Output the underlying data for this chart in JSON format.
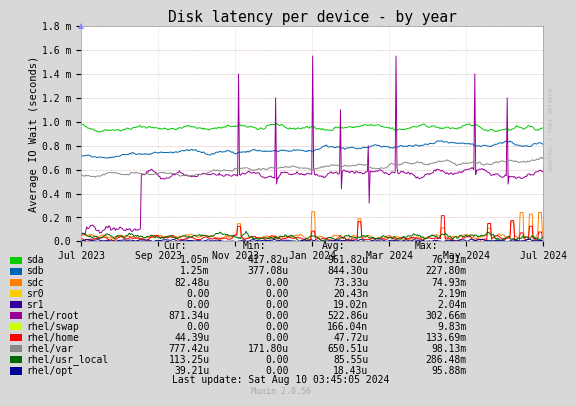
{
  "title": "Disk latency per device - by year",
  "ylabel": "Average IO Wait (seconds)",
  "background_color": "#d8d8d8",
  "plot_bg_color": "#ffffff",
  "title_fontsize": 11,
  "xticklabels": [
    "Jul 2023",
    "Sep 2023",
    "Nov 2023",
    "Jan 2024",
    "Mar 2024",
    "May 2024",
    "Jul 2024"
  ],
  "yticklabels": [
    "0.0",
    "0.2 m",
    "0.4 m",
    "0.6 m",
    "0.8 m",
    "1.0 m",
    "1.2 m",
    "1.4 m",
    "1.6 m",
    "1.8 m"
  ],
  "ylim": [
    0,
    0.0018
  ],
  "series": [
    {
      "name": "sda",
      "color": "#00cc00",
      "lw": 0.7
    },
    {
      "name": "sdb",
      "color": "#0066b3",
      "lw": 0.7
    },
    {
      "name": "sdc",
      "color": "#ff8000",
      "lw": 0.7
    },
    {
      "name": "sr0",
      "color": "#ffcc00",
      "lw": 0.7
    },
    {
      "name": "sr1",
      "color": "#330099",
      "lw": 0.7
    },
    {
      "name": "rhel/root",
      "color": "#990099",
      "lw": 0.7
    },
    {
      "name": "rhel/swap",
      "color": "#ccff00",
      "lw": 0.7
    },
    {
      "name": "rhel/home",
      "color": "#ff0000",
      "lw": 0.7
    },
    {
      "name": "rhel/var",
      "color": "#888888",
      "lw": 0.7
    },
    {
      "name": "rhel/usr_local",
      "color": "#006600",
      "lw": 0.7
    },
    {
      "name": "rhel/opt",
      "color": "#000099",
      "lw": 0.7
    }
  ],
  "table_headers": [
    "Cur:",
    "Min:",
    "Avg:",
    "Max:"
  ],
  "table_data": [
    [
      "1.05m",
      "417.82u",
      "961.82u",
      "76.31m"
    ],
    [
      "1.25m",
      "377.08u",
      "844.30u",
      "227.80m"
    ],
    [
      "82.48u",
      "0.00",
      "73.33u",
      "74.93m"
    ],
    [
      "0.00",
      "0.00",
      "20.43n",
      "2.19m"
    ],
    [
      "0.00",
      "0.00",
      "19.02n",
      "2.04m"
    ],
    [
      "871.34u",
      "0.00",
      "522.86u",
      "302.66m"
    ],
    [
      "0.00",
      "0.00",
      "166.04n",
      "9.83m"
    ],
    [
      "44.39u",
      "0.00",
      "47.72u",
      "133.69m"
    ],
    [
      "777.42u",
      "171.80u",
      "650.51u",
      "98.13m"
    ],
    [
      "113.25u",
      "0.00",
      "85.55u",
      "286.48m"
    ],
    [
      "39.21u",
      "0.00",
      "18.43u",
      "95.88m"
    ]
  ],
  "last_update": "Last update: Sat Aug 10 03:45:05 2024",
  "munin_version": "Munin 2.0.56",
  "right_label": "RRDTOOL / TOBI OETIKER",
  "n_points": 500
}
